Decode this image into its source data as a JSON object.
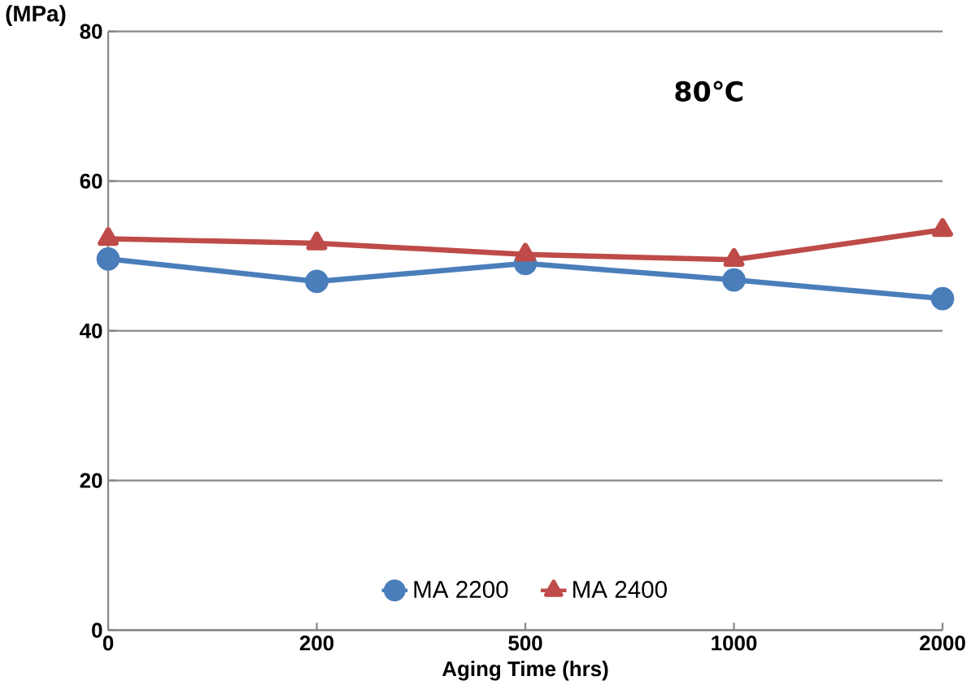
{
  "chart_data": {
    "type": "line",
    "xlabel": "Aging Time (hrs)",
    "ylabel": "(MPa)",
    "categories": [
      "0",
      "200",
      "500",
      "1000",
      "2000"
    ],
    "series": [
      {
        "name": "MA 2200",
        "color": "#4a7ebb",
        "marker": "circle",
        "values": [
          49.6,
          46.6,
          49.0,
          46.8,
          44.3
        ]
      },
      {
        "name": "MA 2400",
        "color": "#be4b48",
        "marker": "triangle",
        "values": [
          52.3,
          51.7,
          50.2,
          49.5,
          53.5
        ]
      }
    ],
    "ylim": [
      0,
      80
    ],
    "yticks": [
      0,
      20,
      40,
      60,
      80
    ],
    "grid": "y",
    "legend": "bottom",
    "annotations": [
      "80℃"
    ]
  }
}
